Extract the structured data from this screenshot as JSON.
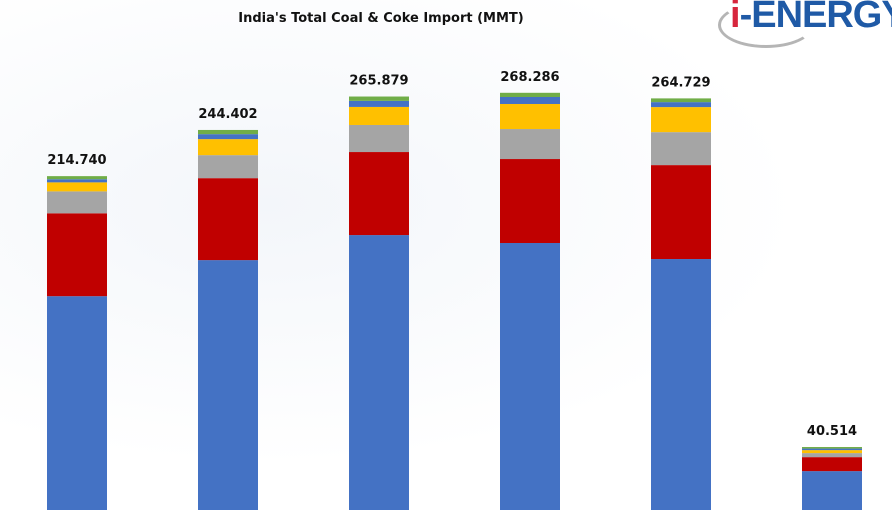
{
  "chart_data": {
    "type": "stacked-bar",
    "title": "India's Total Coal & Coke Import (MMT)",
    "categories": [
      "",
      "",
      "",
      "",
      "",
      ""
    ],
    "totals": [
      "214.740",
      "244.402",
      "265.879",
      "268.286",
      "264.729",
      "40.514"
    ],
    "series": [
      {
        "color": "#4472c4",
        "values": [
          137.5,
          160.7,
          176.8,
          171.7,
          161.4,
          25.0
        ]
      },
      {
        "color": "#c00000",
        "values": [
          53.3,
          52.7,
          53.4,
          54.0,
          60.4,
          9.0
        ]
      },
      {
        "color": "#a5a5a5",
        "values": [
          14.1,
          14.8,
          17.4,
          19.3,
          21.2,
          2.6
        ]
      },
      {
        "color": "#ffc000",
        "values": [
          5.8,
          10.3,
          11.6,
          16.1,
          16.1,
          1.9
        ]
      },
      {
        "color": "#4472c4",
        "values": [
          2.0,
          3.2,
          3.9,
          4.5,
          3.2,
          1.0
        ]
      },
      {
        "color": "#70ad47",
        "values": [
          2.0,
          2.7,
          2.8,
          2.7,
          2.4,
          1.0
        ]
      }
    ],
    "ylim": [
      0,
      300
    ],
    "grid": false,
    "legend": "none"
  },
  "logo": {
    "text_i": "i",
    "text_rest": "-ENERGY"
  }
}
